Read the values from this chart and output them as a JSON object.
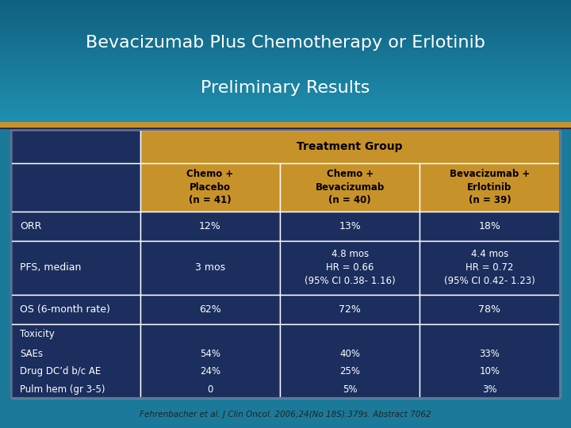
{
  "title_line1": "Bevacizumab Plus Chemotherapy or Erlotinib",
  "title_line2": "Preliminary Results",
  "header_main": "Treatment Group",
  "col_headers": [
    "Chemo +\nPlacebo\n(n = 41)",
    "Chemo +\nBevacizumab\n(n = 40)",
    "Bevacizumab +\nErlotinib\n(n = 39)"
  ],
  "footnote": "Fehrenbacher et al. J Clin Oncol. 2006;24(No 18S):379s. Abstract 7062",
  "gold_color": "#C8922A",
  "white": "#FFFFFF",
  "dark_navy": "#1B2E5E",
  "teal_title": "#1B7A9A",
  "teal_dark": "#155070",
  "pfs_col2": "4.8 mos\nHR = 0.66\n(95% CI 0.38- 1.16)",
  "pfs_col3": "4.4 mos\nHR = 0.72\n(95% CI 0.42- 1.23)"
}
